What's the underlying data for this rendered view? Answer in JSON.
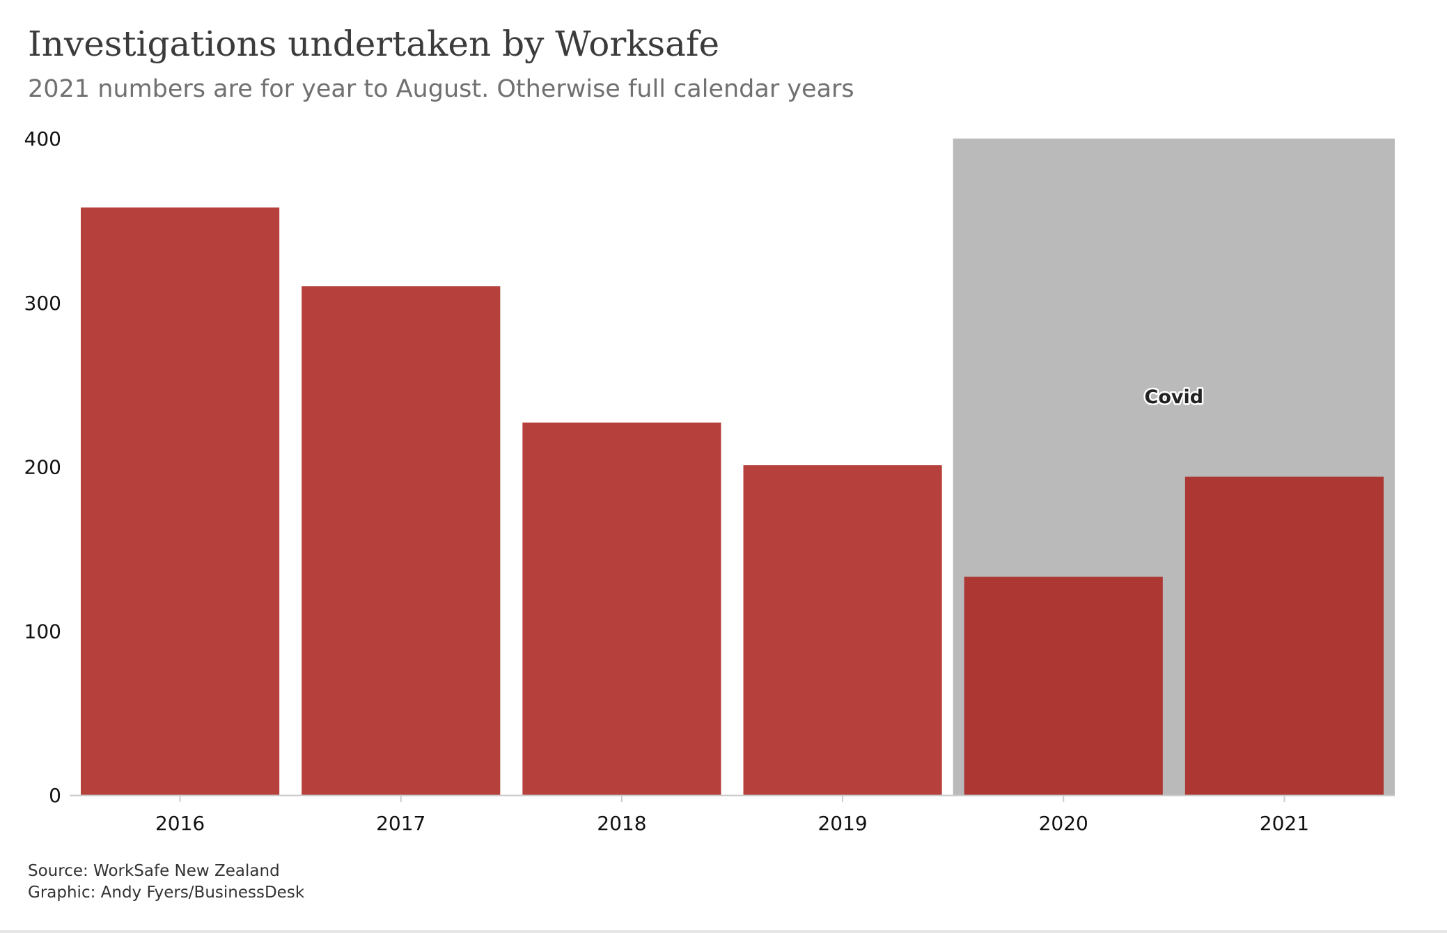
{
  "header": {
    "title": "Investigations undertaken by Worksafe",
    "subtitle": "2021 numbers are for year to August. Otherwise full calendar years"
  },
  "footer": {
    "source": "Source: WorkSafe New Zealand",
    "credit": "Graphic: Andy Fyers/BusinessDesk"
  },
  "colors": {
    "bar": "#b5403c",
    "bar_highlighted": "#ac3733",
    "covid_band": "#bababa",
    "axis": "#cccccc",
    "text": "#111111"
  },
  "chart_data": {
    "type": "bar",
    "title": "Investigations undertaken by Worksafe",
    "subtitle": "2021 numbers are for year to August. Otherwise full calendar years",
    "xlabel": "",
    "ylabel": "",
    "categories": [
      "2016",
      "2017",
      "2018",
      "2019",
      "2020",
      "2021"
    ],
    "values": [
      358,
      310,
      227,
      201,
      133,
      194
    ],
    "ylim": [
      0,
      400
    ],
    "yticks": [
      0,
      100,
      200,
      300,
      400
    ],
    "grid": false,
    "legend": "none",
    "annotations": [
      {
        "type": "shaded-band",
        "label": "Covid",
        "x_from": "2020",
        "x_to": "2021",
        "y_from": 0,
        "y_to": 400
      }
    ]
  }
}
